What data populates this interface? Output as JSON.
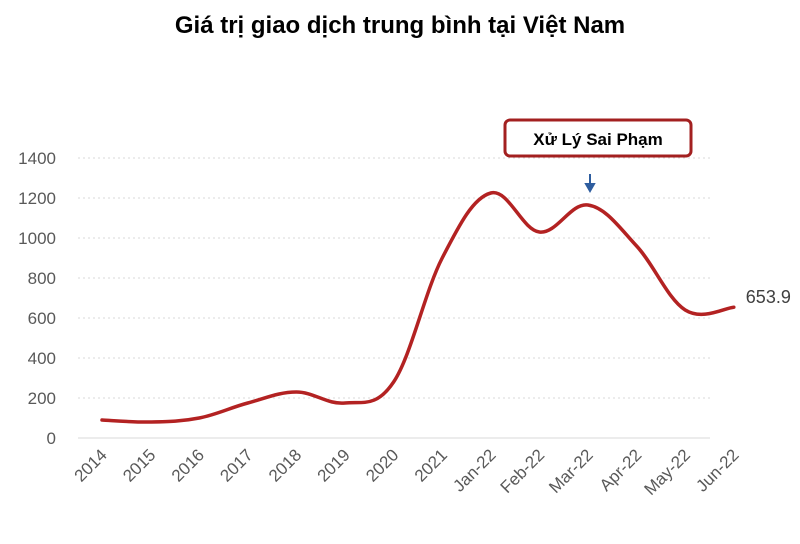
{
  "chart_data": {
    "type": "line",
    "title": "Giá trị giao dịch trung bình tại Việt Nam",
    "categories": [
      "2014",
      "2015",
      "2016",
      "2017",
      "2018",
      "2019",
      "2020",
      "2021",
      "Jan-22",
      "Feb-22",
      "Mar-22",
      "Apr-22",
      "May-22",
      "Jun-22"
    ],
    "series": [
      {
        "values": [
          90,
          80,
          100,
          175,
          230,
          175,
          280,
          900,
          1225,
          1030,
          1165,
          960,
          640,
          653.9
        ],
        "color": "#b32222"
      }
    ],
    "ylim": [
      0,
      1400
    ],
    "yticks": [
      0,
      200,
      400,
      600,
      800,
      1000,
      1200,
      1400
    ],
    "grid": true,
    "end_value_label": "653.9",
    "annotation": {
      "text": "Xử Lý Sai Phạm",
      "category": "Mar-22",
      "color": "#a32020"
    }
  }
}
